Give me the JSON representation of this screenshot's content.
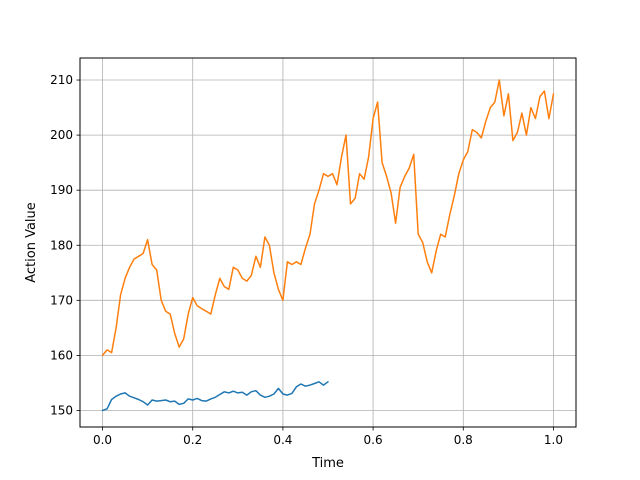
{
  "chart_data": {
    "type": "line",
    "title": "",
    "xlabel": "Time",
    "ylabel": "Action Value",
    "xlim": [
      -0.05,
      1.05
    ],
    "ylim": [
      147,
      214
    ],
    "xticks": [
      0.0,
      0.2,
      0.4,
      0.6,
      0.8,
      1.0
    ],
    "xtick_labels": [
      "0.0",
      "0.2",
      "0.4",
      "0.6",
      "0.8",
      "1.0"
    ],
    "yticks": [
      150,
      160,
      170,
      180,
      190,
      200,
      210
    ],
    "ytick_labels": [
      "150",
      "160",
      "170",
      "180",
      "190",
      "200",
      "210"
    ],
    "grid": true,
    "legend": "none",
    "series": [
      {
        "color": "#1f77b4",
        "x": [
          0.0,
          0.01,
          0.02,
          0.03,
          0.04,
          0.05,
          0.06,
          0.07,
          0.08,
          0.09,
          0.1,
          0.11,
          0.12,
          0.13,
          0.14,
          0.15,
          0.16,
          0.17,
          0.18,
          0.19,
          0.2,
          0.21,
          0.22,
          0.23,
          0.24,
          0.25,
          0.26,
          0.27,
          0.28,
          0.29,
          0.3,
          0.31,
          0.32,
          0.33,
          0.34,
          0.35,
          0.36,
          0.37,
          0.38,
          0.39,
          0.4,
          0.41,
          0.42,
          0.43,
          0.44,
          0.45,
          0.46,
          0.47,
          0.48,
          0.49,
          0.5
        ],
        "y": [
          150.0,
          150.3,
          152.0,
          152.6,
          153.0,
          153.2,
          152.6,
          152.3,
          152.0,
          151.6,
          151.0,
          151.9,
          151.7,
          151.8,
          151.9,
          151.6,
          151.7,
          151.1,
          151.3,
          152.1,
          151.9,
          152.2,
          151.8,
          151.7,
          152.1,
          152.4,
          152.9,
          153.4,
          153.2,
          153.5,
          153.2,
          153.3,
          152.8,
          153.4,
          153.6,
          152.8,
          152.4,
          152.6,
          153.0,
          154.0,
          153.0,
          152.8,
          153.1,
          154.3,
          154.8,
          154.4,
          154.6,
          154.9,
          155.2,
          154.6,
          155.2
        ]
      },
      {
        "color": "#ff7f0e",
        "x": [
          0.0,
          0.01,
          0.02,
          0.03,
          0.04,
          0.05,
          0.06,
          0.07,
          0.08,
          0.09,
          0.1,
          0.11,
          0.12,
          0.13,
          0.14,
          0.15,
          0.16,
          0.17,
          0.18,
          0.19,
          0.2,
          0.21,
          0.22,
          0.23,
          0.24,
          0.25,
          0.26,
          0.27,
          0.28,
          0.29,
          0.3,
          0.31,
          0.32,
          0.33,
          0.34,
          0.35,
          0.36,
          0.37,
          0.38,
          0.39,
          0.4,
          0.41,
          0.42,
          0.43,
          0.44,
          0.45,
          0.46,
          0.47,
          0.48,
          0.49,
          0.5,
          0.51,
          0.52,
          0.53,
          0.54,
          0.55,
          0.56,
          0.57,
          0.58,
          0.59,
          0.6,
          0.61,
          0.62,
          0.63,
          0.64,
          0.65,
          0.66,
          0.67,
          0.68,
          0.69,
          0.7,
          0.71,
          0.72,
          0.73,
          0.74,
          0.75,
          0.76,
          0.77,
          0.78,
          0.79,
          0.8,
          0.81,
          0.82,
          0.83,
          0.84,
          0.85,
          0.86,
          0.87,
          0.88,
          0.89,
          0.9,
          0.91,
          0.92,
          0.93,
          0.94,
          0.95,
          0.96,
          0.97,
          0.98,
          0.99,
          1.0
        ],
        "y": [
          160.0,
          161.0,
          160.5,
          165.0,
          171.0,
          174.0,
          176.0,
          177.5,
          178.0,
          178.5,
          181.0,
          176.5,
          175.5,
          170.0,
          168.0,
          167.5,
          164.0,
          161.5,
          163.0,
          167.5,
          170.5,
          169.0,
          168.5,
          168.0,
          167.5,
          171.0,
          174.0,
          172.5,
          172.0,
          176.0,
          175.5,
          174.0,
          173.5,
          174.5,
          178.0,
          176.0,
          181.5,
          180.0,
          175.0,
          172.0,
          170.0,
          177.0,
          176.5,
          177.0,
          176.5,
          179.5,
          182.0,
          187.5,
          190.0,
          193.0,
          192.5,
          193.0,
          191.0,
          196.0,
          200.0,
          187.5,
          188.5,
          193.0,
          192.0,
          196.0,
          203.0,
          206.0,
          195.0,
          192.5,
          189.5,
          184.0,
          190.5,
          192.5,
          194.0,
          196.5,
          182.0,
          180.5,
          177.0,
          175.0,
          179.0,
          182.0,
          181.5,
          185.5,
          189.0,
          193.0,
          195.5,
          197.0,
          201.0,
          200.5,
          199.5,
          202.5,
          205.0,
          206.0,
          210.0,
          203.5,
          207.5,
          199.0,
          200.5,
          204.0,
          200.0,
          205.0,
          203.0,
          207.0,
          208.0,
          203.0,
          207.5
        ]
      }
    ]
  }
}
